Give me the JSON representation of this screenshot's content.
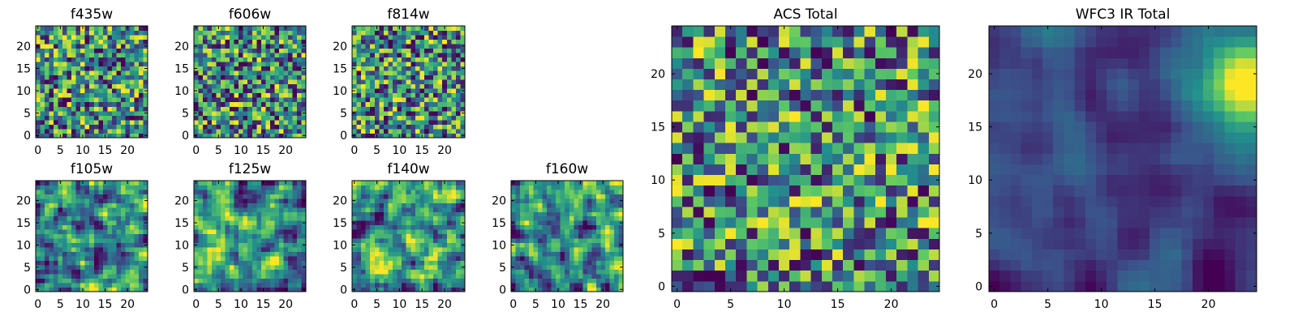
{
  "figure": {
    "colormap": [
      "#440154",
      "#3b528b",
      "#21908d",
      "#5dc963",
      "#fde725"
    ],
    "background": "#ffffff"
  },
  "chart_data": [
    {
      "type": "heatmap",
      "title": "f435w",
      "grid_size": 25,
      "xticks": [
        0,
        5,
        10,
        15,
        20
      ],
      "yticks": [
        0,
        5,
        10,
        15,
        20
      ],
      "xlim": [
        -0.5,
        24.5
      ],
      "ylim": [
        -0.5,
        24.5
      ],
      "origin": "lower",
      "seed": 11,
      "smooth": 0,
      "hot_spot": null
    },
    {
      "type": "heatmap",
      "title": "f606w",
      "grid_size": 25,
      "xticks": [
        0,
        5,
        10,
        15,
        20
      ],
      "yticks": [
        0,
        5,
        10,
        15,
        20
      ],
      "xlim": [
        -0.5,
        24.5
      ],
      "ylim": [
        -0.5,
        24.5
      ],
      "origin": "lower",
      "seed": 23,
      "smooth": 0,
      "hot_spot": null
    },
    {
      "type": "heatmap",
      "title": "f814w",
      "grid_size": 25,
      "xticks": [
        0,
        5,
        10,
        15,
        20
      ],
      "yticks": [
        0,
        5,
        10,
        15,
        20
      ],
      "xlim": [
        -0.5,
        24.5
      ],
      "ylim": [
        -0.5,
        24.5
      ],
      "origin": "lower",
      "seed": 37,
      "smooth": 0,
      "hot_spot": null
    },
    {
      "type": "heatmap",
      "title": "f105w",
      "grid_size": 25,
      "xticks": [
        0,
        5,
        10,
        15,
        20
      ],
      "yticks": [
        0,
        5,
        10,
        15,
        20
      ],
      "xlim": [
        -0.5,
        24.5
      ],
      "ylim": [
        -0.5,
        24.5
      ],
      "origin": "lower",
      "seed": 41,
      "smooth": 1,
      "hot_spot": null
    },
    {
      "type": "heatmap",
      "title": "f125w",
      "grid_size": 25,
      "xticks": [
        0,
        5,
        10,
        15,
        20
      ],
      "yticks": [
        0,
        5,
        10,
        15,
        20
      ],
      "xlim": [
        -0.5,
        24.5
      ],
      "ylim": [
        -0.5,
        24.5
      ],
      "origin": "lower",
      "seed": 53,
      "smooth": 1,
      "hot_spot": null
    },
    {
      "type": "heatmap",
      "title": "f140w",
      "grid_size": 25,
      "xticks": [
        0,
        5,
        10,
        15,
        20
      ],
      "yticks": [
        0,
        5,
        10,
        15,
        20
      ],
      "xlim": [
        -0.5,
        24.5
      ],
      "ylim": [
        -0.5,
        24.5
      ],
      "origin": "lower",
      "seed": 67,
      "smooth": 1,
      "hot_spot": null
    },
    {
      "type": "heatmap",
      "title": "f160w",
      "grid_size": 25,
      "xticks": [
        0,
        5,
        10,
        15,
        20
      ],
      "yticks": [
        0,
        5,
        10,
        15,
        20
      ],
      "xlim": [
        -0.5,
        24.5
      ],
      "ylim": [
        -0.5,
        24.5
      ],
      "origin": "lower",
      "seed": 79,
      "smooth": 1,
      "hot_spot": null
    },
    {
      "type": "heatmap",
      "title": "ACS Total",
      "grid_size": 25,
      "xticks": [
        0,
        5,
        10,
        15,
        20
      ],
      "yticks": [
        0,
        5,
        10,
        15,
        20
      ],
      "xlim": [
        -0.5,
        24.5
      ],
      "ylim": [
        -0.5,
        24.5
      ],
      "origin": "lower",
      "seed": 97,
      "smooth": 0,
      "hot_spot": null
    },
    {
      "type": "heatmap",
      "title": "WFC3 IR Total",
      "grid_size": 25,
      "xticks": [
        0,
        5,
        10,
        15,
        20
      ],
      "yticks": [
        0,
        5,
        10,
        15,
        20
      ],
      "xlim": [
        -0.5,
        24.5
      ],
      "ylim": [
        -0.5,
        24.5
      ],
      "origin": "lower",
      "seed": 131,
      "smooth": 2,
      "hot_spot": [
        23,
        19
      ]
    }
  ]
}
